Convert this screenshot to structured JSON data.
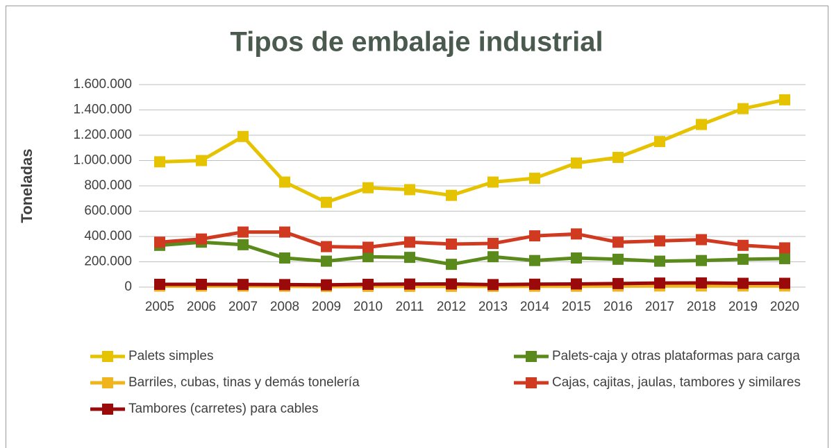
{
  "chart_data": {
    "type": "line",
    "title": "Tipos de embalaje industrial",
    "y_label": "Toneladas",
    "categories": [
      "2005",
      "2006",
      "2007",
      "2008",
      "2009",
      "2010",
      "2011",
      "2012",
      "2013",
      "2014",
      "2015",
      "2016",
      "2017",
      "2018",
      "2019",
      "2020"
    ],
    "series": [
      {
        "name": "Palets simples",
        "color": "#e6c300",
        "values": [
          990000,
          1000000,
          1190000,
          830000,
          670000,
          785000,
          770000,
          725000,
          830000,
          860000,
          980000,
          1025000,
          1150000,
          1285000,
          1410000,
          1480000
        ]
      },
      {
        "name": "Palets-caja y otras plataformas para carga",
        "color": "#5b8a1c",
        "values": [
          330000,
          355000,
          335000,
          230000,
          205000,
          240000,
          235000,
          180000,
          240000,
          210000,
          230000,
          220000,
          205000,
          210000,
          220000,
          225000
        ]
      },
      {
        "name": "Barriles, cubas, tinas y demás tonelería",
        "color": "#f0b41c",
        "values": [
          8000,
          8000,
          8000,
          7000,
          5000,
          6000,
          6000,
          6000,
          6000,
          7000,
          7000,
          8000,
          9000,
          9000,
          9000,
          9000
        ]
      },
      {
        "name": "Cajas, cajitas, jaulas, tambores y similares",
        "color": "#d03a20",
        "values": [
          355000,
          380000,
          435000,
          435000,
          320000,
          315000,
          355000,
          340000,
          345000,
          405000,
          420000,
          355000,
          365000,
          375000,
          330000,
          310000
        ]
      },
      {
        "name": "Tambores (carretes) para cables",
        "color": "#9b0a0a",
        "values": [
          22000,
          22000,
          21000,
          20000,
          18000,
          22000,
          24000,
          25000,
          20000,
          23000,
          25000,
          28000,
          32000,
          33000,
          30000,
          30000
        ]
      }
    ],
    "ylim": [
      0,
      1600000
    ],
    "yticks": [
      0,
      {
        "value": 200000,
        "label": "200.000"
      },
      {
        "value": 400000,
        "label": "400.000"
      },
      {
        "value": 600000,
        "label": "600.000"
      },
      {
        "value": 800000,
        "label": "800.000"
      },
      {
        "value": 1000000,
        "label": "1.000.000"
      },
      {
        "value": 1200000,
        "label": "1.200.000"
      },
      {
        "value": 1400000,
        "label": "1.400.000"
      },
      {
        "value": 1600000,
        "label": "1.600.000"
      }
    ],
    "grid": true,
    "legend": "bottom"
  }
}
